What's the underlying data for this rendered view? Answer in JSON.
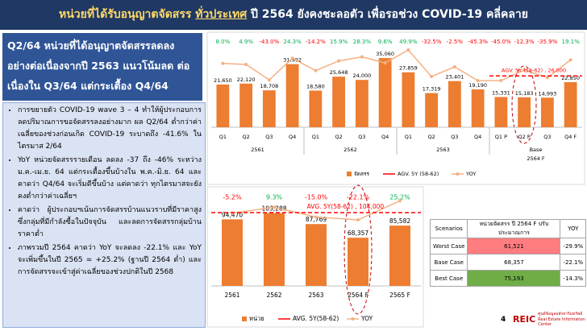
{
  "header": {
    "title_parts": [
      "หน่วยที่ได้รับอนุญาตจัดสรร",
      "ทั่วประเทศ",
      "ปี 2564 ยังคงชะลอตัว เพื่อรอช่วง COVID-19 คลี่คลาย"
    ]
  },
  "summary": {
    "heading": "Q2/64 หน่วยที่ได้อนุญาตจัดสรรลดลง อย่างต่อเนื่องจากปี 2563 แนวโน้มลด ต่อเนื่องใน Q3/64 แต่กระเตื้อง Q4/64",
    "bullets": [
      "การขยายตัว COVID-19 wave 3 – 4 ทำให้ผู้ประกอบการ ลดปริมาณการขอจัดสรรลงอย่างมาก ผล Q2/64 ต่ำกว่าค่าเฉลี่ยของช่วงก่อนเกิด COVID-19 ระบาดถึง -41.6% ในไตรมาส 2/64",
      "YoY หน่วยจัดสรรรายเดือน ลดลง -37 ถึง -46% ระหว่าง ม.ค.-เม.ย. 64 แต่กระเตื้องขึ้นบ้างใน พ.ค.-มิ.ย. 64 และคาดว่า Q4/64 จะเริ่มดีขึ้นบ้าง แต่คาดว่า ทุกไตรมาสจะยังคงต่ำกว่าค่าเฉลี่ยฯ",
      "คาดว่า ผู้ประกอบฯเน้นการจัดสรรบ้านแนวราบที่มีราคาสูง ซึ่งกลุ่มที่มีกำลังซื้อในปัจจุบัน และลดการจัดสรรกลุ่มบ้านราคาต่ำ",
      "ภาพรวมปี 2564 คาดว่า YoY จะลดลง -22.1% และ YoY จะเพิ่มขึ้นในปี 2565 = +25.2% (ฐานปี 2564 ต่ำ) และการจัดสรรจะเข้าสู่ค่าเฉลี่ยของช่วงปกติในปี 2568"
    ]
  },
  "chart_data": [
    {
      "type": "bar",
      "categories": [
        "Q1",
        "Q2",
        "Q3",
        "Q4",
        "Q1",
        "Q2",
        "Q3",
        "Q4",
        "Q1",
        "Q2",
        "Q3",
        "Q4",
        "Q1 P",
        "Q2 P",
        "Q3",
        "Q4 F"
      ],
      "group_labels": [
        "2561",
        "2562",
        "2563",
        "2564 F"
      ],
      "scenario_label": "Base",
      "series": [
        {
          "name": "จัดสรร",
          "color": "#ed7d31",
          "values": [
            21650,
            22120,
            18708,
            31992,
            18580,
            25648,
            24000,
            35060,
            27859,
            17319,
            23401,
            19190,
            15331,
            15183,
            14993,
            22850
          ],
          "value_labels": [
            "21,650",
            "22,120",
            "18,708",
            "31,992",
            "18,580",
            "25,648",
            "24,000",
            "35,060",
            "27,859",
            "17,319",
            "23,401",
            "19,190",
            "15,331",
            "15,183",
            "14,993",
            "22,850"
          ]
        },
        {
          "name": "YOY",
          "color": "#f4b183",
          "axis": "y2",
          "values": [
            8.0,
            4.9,
            -43.0,
            24.3,
            -14.2,
            15.9,
            28.3,
            9.6,
            49.9,
            -32.5,
            -2.5,
            -45.3,
            -45.0,
            -12.3,
            -35.9,
            19.1
          ],
          "value_labels": [
            "8.0%",
            "4.9%",
            "-43.0%",
            "24.3%",
            "-14.2%",
            "15.9%",
            "28.3%",
            "9.6%",
            "49.9%",
            "-32.5%",
            "-2.5%",
            "-45.3%",
            "-45.0%",
            "-12.3%",
            "-35.9%",
            "19.1%"
          ]
        }
      ],
      "reference_line": {
        "name": "AGV. 5Y (58-62)",
        "label": "AGV. 5Y (58-62) , 26,000",
        "value": 26000,
        "color": "#ff0000"
      },
      "ylim": [
        0,
        40000
      ],
      "y2lim": [
        -100,
        100
      ]
    },
    {
      "type": "bar",
      "categories": [
        "2561",
        "2562",
        "2563",
        "2564 F",
        "2565 F"
      ],
      "series": [
        {
          "name": "หน่วย",
          "color": "#ed7d31",
          "values": [
            94470,
            103288,
            87769,
            68357,
            85582
          ],
          "value_labels": [
            "94,470",
            "103,288",
            "87,769",
            "68,357",
            "85,582"
          ]
        },
        {
          "name": "YOY",
          "color": "#f4b183",
          "axis": "y2",
          "values": [
            -5.2,
            9.3,
            -15.0,
            -22.1,
            25.2
          ],
          "value_labels": [
            "-5.2%",
            "9.3%",
            "-15.0%",
            "-22.1%",
            "25.2%"
          ]
        }
      ],
      "reference_line": {
        "name": "AVG. 5Y(58-62)",
        "label": "AVG. 5Y(58-62) , 104,000",
        "value": 104000,
        "color": "#ff0000"
      },
      "ylim": [
        0,
        120000
      ],
      "y2lim": [
        -40,
        40
      ]
    }
  ],
  "table": {
    "header": [
      "Scenarios",
      "หน่วยจัดสรร ปี 2564 F ปรับประมาณการ",
      "YOY"
    ],
    "rows": [
      [
        "Worst Case",
        "61,521",
        "-29.9%"
      ],
      [
        "Base Case",
        "68,357",
        "-22.1%"
      ],
      [
        "Best Case",
        "75,193",
        "-14.3%"
      ]
    ]
  },
  "footer": {
    "page": "4",
    "logo": "REIC",
    "org_th": "ศูนย์ข้อมูลอสังหาริมทรัพย์",
    "org_en": "Real Estate Information Center"
  }
}
